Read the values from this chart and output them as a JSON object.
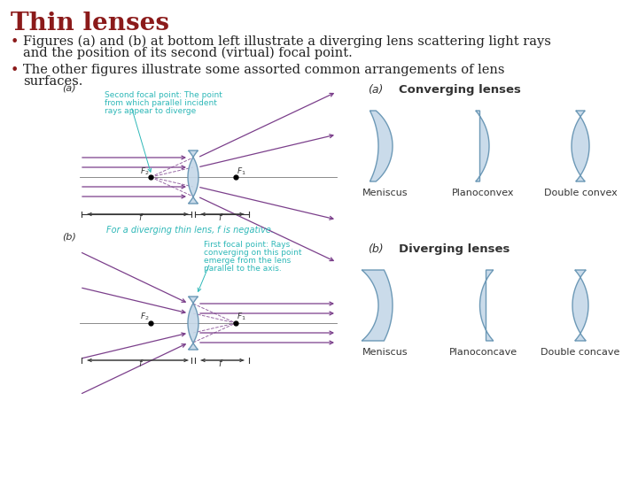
{
  "title": "Thin lenses",
  "title_color": "#8B1A1A",
  "title_fontsize": 20,
  "bullet_color": "#8B1A1A",
  "bullet_fontsize": 10.5,
  "bullet1_line1": "Figures (a) and (b) at bottom left illustrate a diverging lens scattering light rays",
  "bullet1_line2": "and the position of its second (virtual) focal point.",
  "bullet2_line1": "The other figures illustrate some assorted common arrangements of lens",
  "bullet2_line2": "surfaces.",
  "text_color": "#222222",
  "bg_color": "#ffffff",
  "ray_color": "#7B3F8B",
  "lens_face_color": "#C5D8E8",
  "lens_edge_color": "#6090B0",
  "annotation_color": "#2EB8B8",
  "meniscus_label": "Meniscus",
  "planoconvex_label": "Planoconvex",
  "doubleconvex_label": "Double convex",
  "planoconcave_label": "Planoconcave",
  "doubleconcave_label": "Double concave",
  "fig_a_label": "(a)",
  "fig_b_label": "(b)",
  "converging_label": "Converging lenses",
  "diverging_label": "Diverging lenses"
}
